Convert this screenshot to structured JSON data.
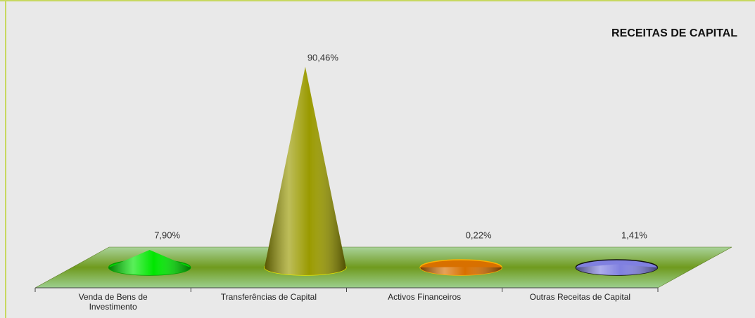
{
  "chart_data": {
    "type": "cone",
    "title": "RECEITAS DE CAPITAL",
    "categories": [
      "Venda de Bens de Investimento",
      "Transferências de Capital",
      "Activos Financeiros",
      "Outras Receitas de Capital"
    ],
    "values": [
      7.9,
      90.46,
      0.22,
      1.41
    ],
    "value_labels": [
      "7,90%",
      "90,46%",
      "0,22%",
      "1,41%"
    ],
    "colors": [
      "#00e600",
      "#9a9a00",
      "#d87000",
      "#8080e0"
    ]
  }
}
